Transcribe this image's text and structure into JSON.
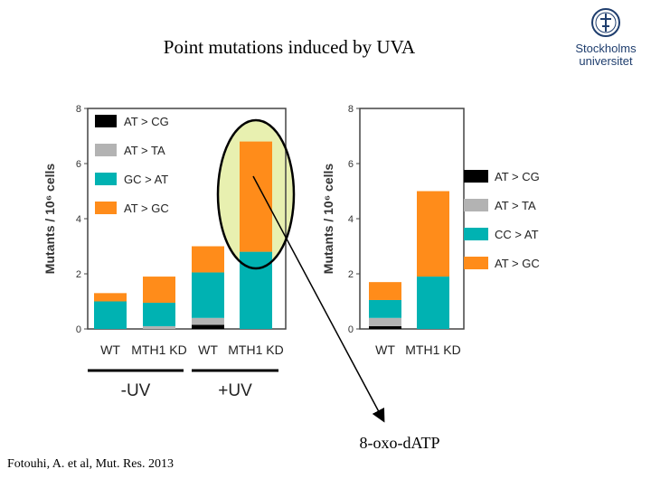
{
  "slide": {
    "title": "Point mutations induced by UVA",
    "citation": "Fotouhi, A. et al, Mut. Res. 2013",
    "logo_line1": "Stockholms",
    "logo_line2": "universitet",
    "annotation": "8-oxo-dATP"
  },
  "colors": {
    "AT>CG": "#000000",
    "AT>TA": "#b3b3b3",
    "GC>AT": "#00b2b2",
    "AT>GC": "#ff8c1a",
    "highlight": "#e8f0b0",
    "brand": "#1f3e6e"
  },
  "chart_data": [
    {
      "type": "bar",
      "stacked": true,
      "ylabel": "Mutants / 10⁶ cells",
      "ylim": [
        0,
        8
      ],
      "yticks": [
        "0",
        "2",
        "4",
        "6",
        "8"
      ],
      "categories": [
        "WT",
        "MTH1 KD",
        "WT",
        "MTH1 KD"
      ],
      "groups": [
        {
          "label": "-UV",
          "categories": [
            0,
            1
          ]
        },
        {
          "label": "+UV",
          "categories": [
            2,
            3
          ]
        }
      ],
      "legend": [
        "AT > CG",
        "AT > TA",
        "GC > AT",
        "AT > GC"
      ],
      "series": [
        {
          "name": "AT > CG",
          "values": [
            0,
            0,
            0.15,
            0
          ]
        },
        {
          "name": "AT > TA",
          "values": [
            0,
            0.1,
            0.25,
            0
          ]
        },
        {
          "name": "GC > AT",
          "values": [
            1.0,
            0.85,
            1.65,
            2.8
          ]
        },
        {
          "name": "AT > GC",
          "values": [
            0.3,
            0.95,
            0.95,
            4.0
          ]
        }
      ]
    },
    {
      "type": "bar",
      "stacked": true,
      "ylabel": "Mutants / 10⁶ cells",
      "ylim": [
        0,
        8
      ],
      "yticks": [
        "0",
        "2",
        "4",
        "6",
        "8"
      ],
      "categories": [
        "WT",
        "MTH1 KD"
      ],
      "legend": [
        "AT > CG",
        "AT > TA",
        "CC > AT",
        "AT > GC"
      ],
      "series": [
        {
          "name": "AT > CG",
          "values": [
            0.1,
            0
          ]
        },
        {
          "name": "AT > TA",
          "values": [
            0.3,
            0
          ]
        },
        {
          "name": "CC > AT",
          "values": [
            0.65,
            1.9
          ]
        },
        {
          "name": "AT > GC",
          "values": [
            0.65,
            3.1
          ]
        }
      ]
    }
  ]
}
